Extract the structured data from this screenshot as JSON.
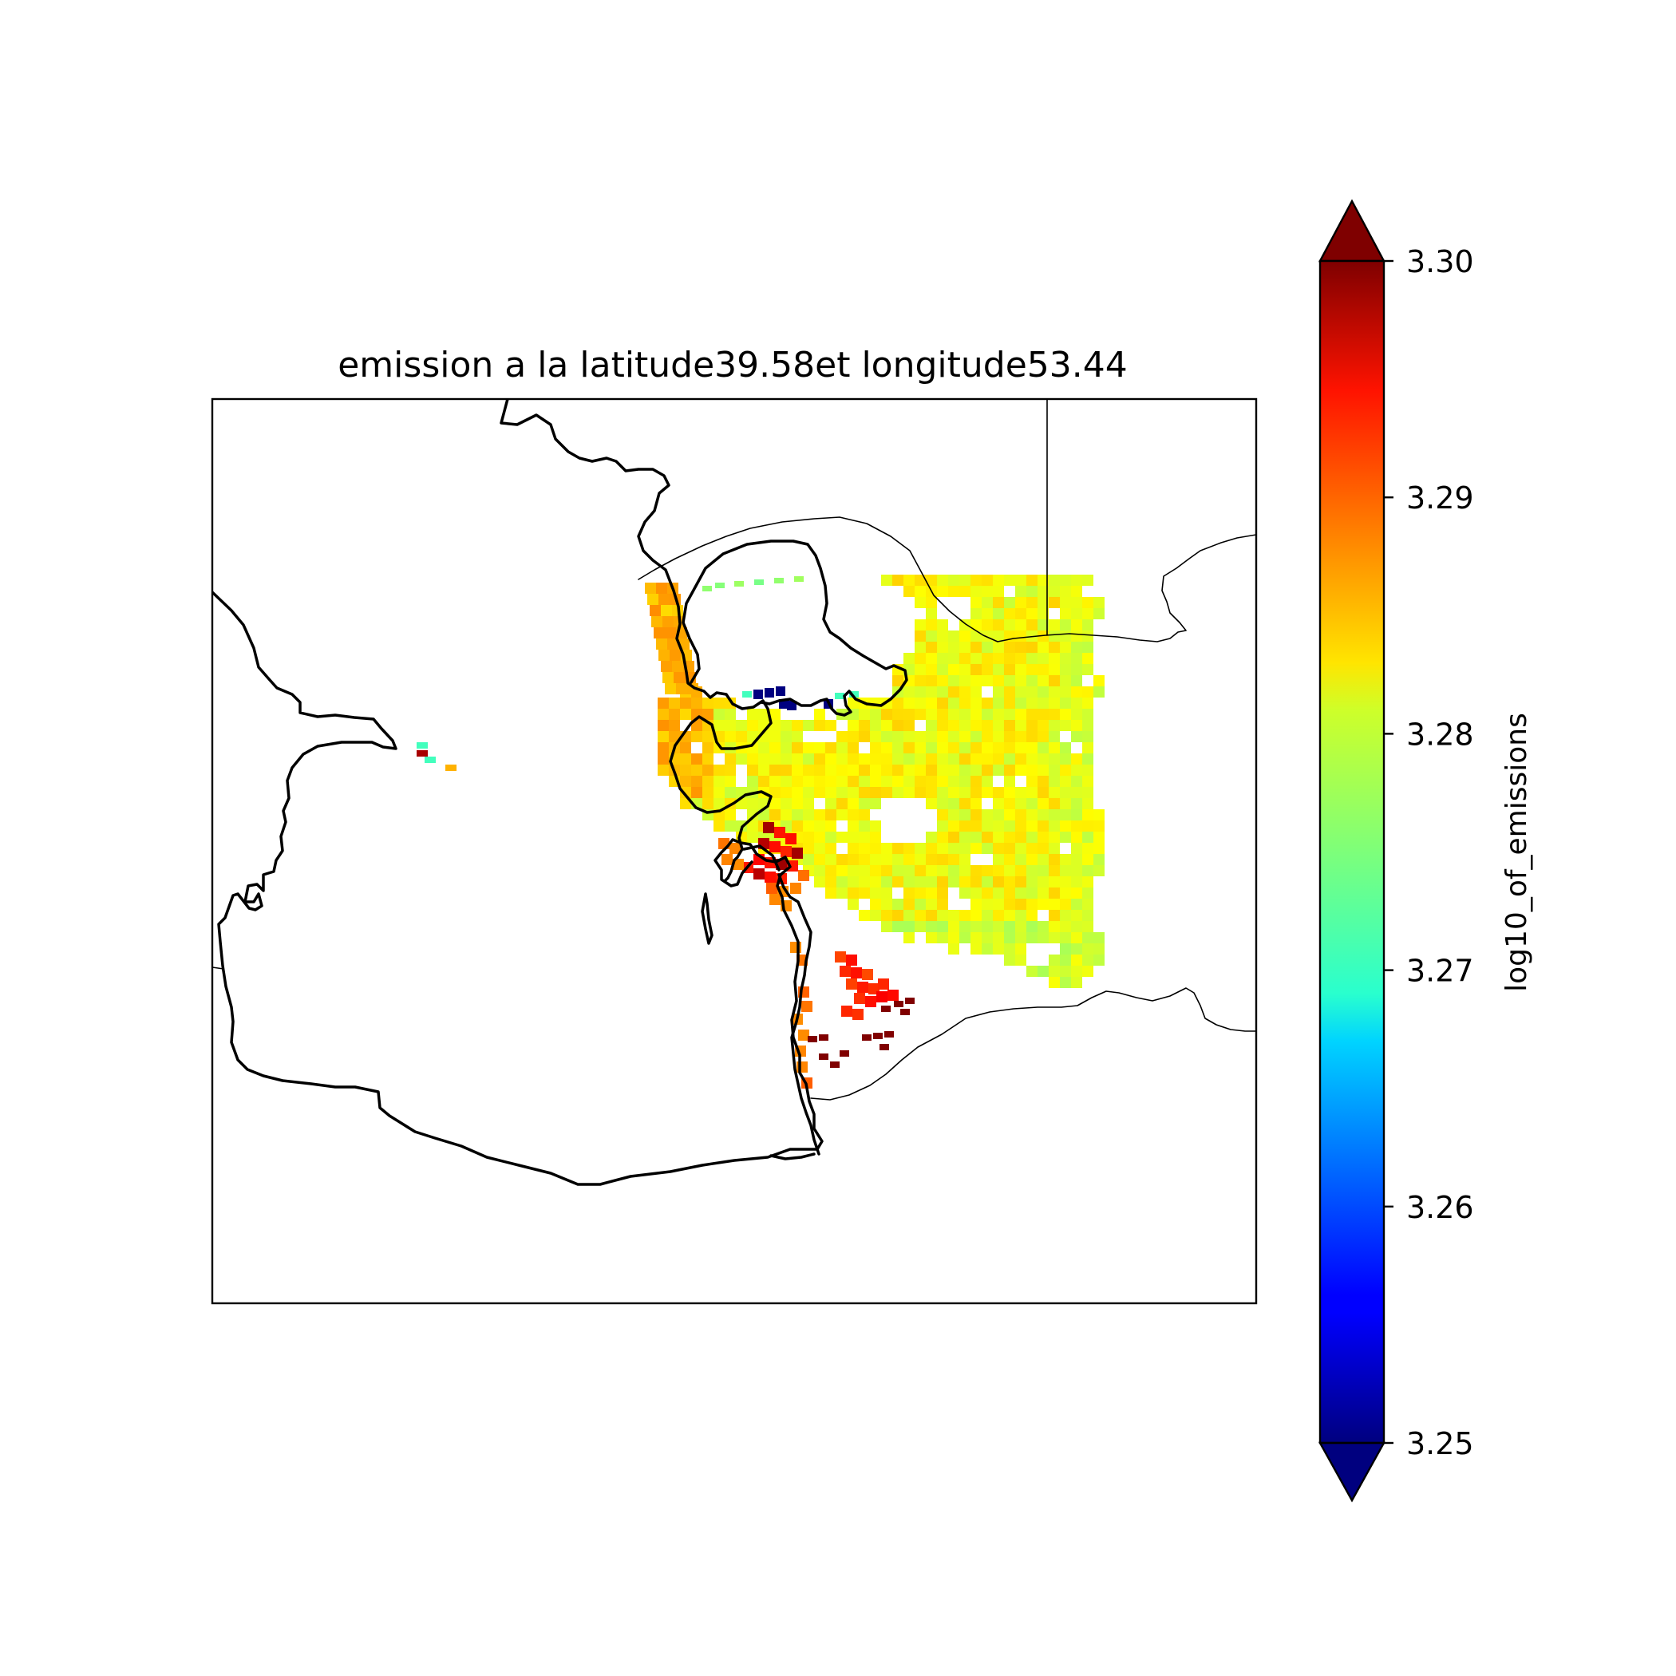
{
  "chart_data": {
    "type": "heatmap",
    "title": "emission a la latitude39.58et longitude53.44",
    "colorbar": {
      "label": "log10_of_emissions",
      "colormap": "jet",
      "extend": "both",
      "vmin": 3.25,
      "vmax": 3.3,
      "ticks": [
        "3.25",
        "3.26",
        "3.27",
        "3.28",
        "3.29",
        "3.30"
      ]
    },
    "grid": false,
    "regions": [
      {
        "name": "northwest-coast-rim",
        "value": 3.285
      },
      {
        "name": "peninsula-north-rim",
        "value": 3.276
      },
      {
        "name": "main-plume",
        "value": 3.281
      },
      {
        "name": "plume-east-edge",
        "value": 3.28
      },
      {
        "name": "plume-south-edge",
        "value": 3.279
      },
      {
        "name": "hotspot-core",
        "value": 3.298
      },
      {
        "name": "hotspot-ring",
        "value": 3.293
      },
      {
        "name": "southern-coast",
        "value": 3.288
      },
      {
        "name": "southern-cluster",
        "value": 3.292
      },
      {
        "name": "southern-dots",
        "value": 3.3
      },
      {
        "name": "gulf-low-cells",
        "value": 3.25
      },
      {
        "name": "offshore-cells",
        "value": 3.272
      }
    ]
  }
}
